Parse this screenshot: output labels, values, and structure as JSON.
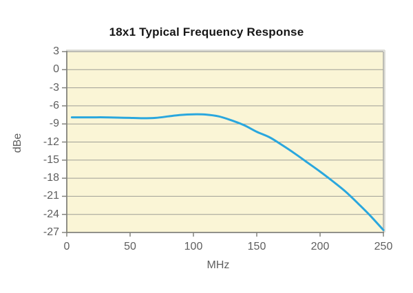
{
  "chart_data": {
    "type": "line",
    "title": "18x1 Typical Frequency Response",
    "xlabel": "MHz",
    "ylabel": "dBe",
    "xlim": [
      0,
      250
    ],
    "ylim": [
      -27,
      3
    ],
    "x_ticks": [
      0,
      50,
      100,
      150,
      200,
      250
    ],
    "y_ticks": [
      3,
      0,
      -3,
      -6,
      -9,
      -12,
      -15,
      -18,
      -21,
      -24,
      -27
    ],
    "grid": "horizontal-only",
    "legend": "none",
    "series": [
      {
        "name": "typical-frequency-response",
        "x": [
          4,
          10,
          20,
          30,
          40,
          50,
          60,
          70,
          80,
          90,
          100,
          110,
          120,
          130,
          140,
          150,
          160,
          170,
          180,
          190,
          200,
          210,
          220,
          230,
          240,
          250
        ],
        "y": [
          -7.9,
          -7.9,
          -7.9,
          -7.9,
          -7.95,
          -8.0,
          -8.05,
          -8.0,
          -7.75,
          -7.5,
          -7.4,
          -7.45,
          -7.75,
          -8.4,
          -9.2,
          -10.3,
          -11.2,
          -12.5,
          -13.9,
          -15.4,
          -16.9,
          -18.5,
          -20.2,
          -22.2,
          -24.3,
          -26.6
        ]
      }
    ]
  },
  "colors": {
    "line": "#2aa7de",
    "plot_background": "#faf5d6",
    "gridline": "#9e9e96",
    "axis": "#82827c",
    "frame": "#a8a8a2",
    "shadow": "#dcdcd6",
    "tick_label": "#5e5e5e",
    "title": "#161616"
  }
}
